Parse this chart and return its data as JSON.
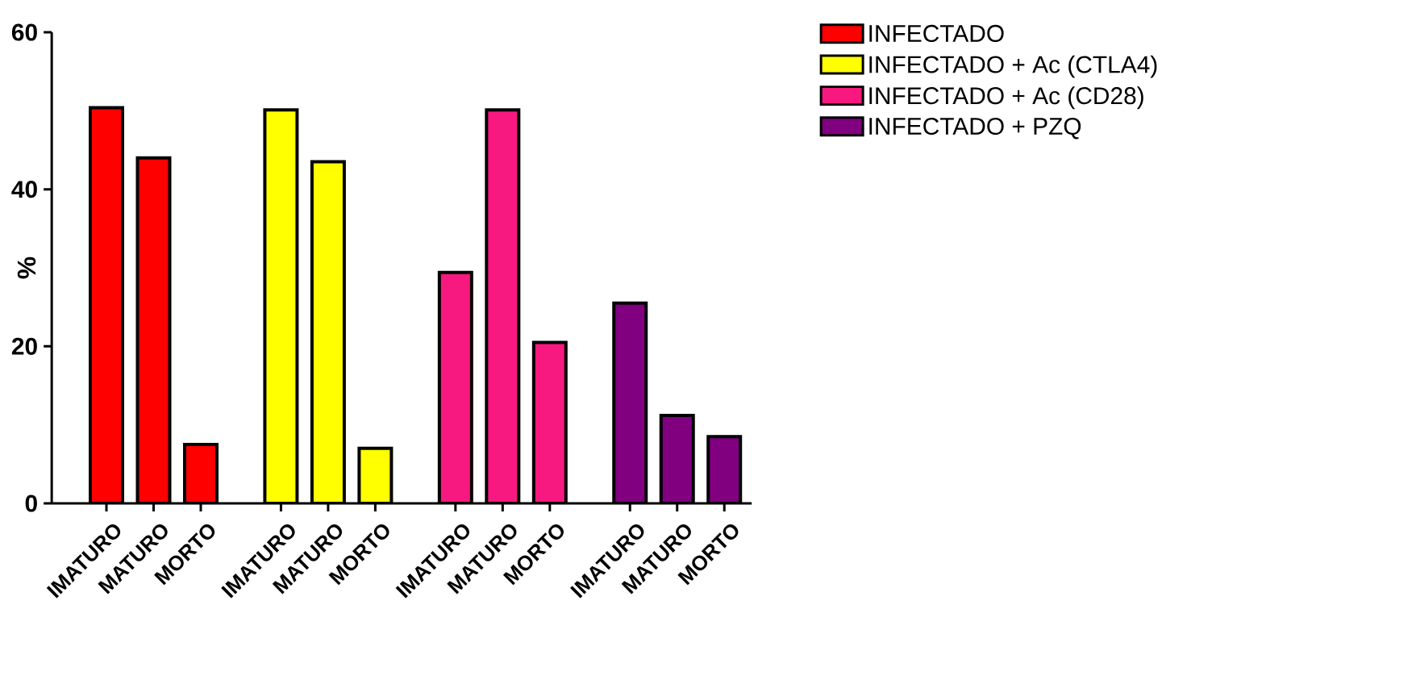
{
  "chart_data": {
    "type": "bar",
    "ylabel": "%",
    "categories": [
      "IMATURO",
      "MATURO",
      "MORTO",
      "IMATURO",
      "MATURO",
      "MORTO",
      "IMATURO",
      "MATURO",
      "MORTO",
      "IMATURO",
      "MATURO",
      "MORTO"
    ],
    "series": [
      {
        "name": "INFECTADO",
        "color": "#ff0000",
        "values": [
          50.4,
          44.0,
          7.5,
          null,
          null,
          null,
          null,
          null,
          null,
          null,
          null,
          null
        ]
      },
      {
        "name": "INFECTADO + Ac (CTLA4)",
        "color": "#ffff00",
        "values": [
          null,
          null,
          null,
          50.1,
          43.5,
          7.0,
          null,
          null,
          null,
          null,
          null,
          null
        ]
      },
      {
        "name": "INFECTADO + Ac (CD28)",
        "color": "#f7197f",
        "values": [
          null,
          null,
          null,
          null,
          null,
          null,
          29.4,
          50.1,
          20.5,
          null,
          null,
          null
        ]
      },
      {
        "name": "INFECTADO + PZQ",
        "color": "#800080",
        "values": [
          null,
          null,
          null,
          null,
          null,
          null,
          null,
          null,
          null,
          25.5,
          11.2,
          8.5
        ]
      }
    ],
    "ylim": [
      0,
      60
    ],
    "yticks": [
      0,
      20,
      40,
      60
    ],
    "legend": "top right"
  }
}
